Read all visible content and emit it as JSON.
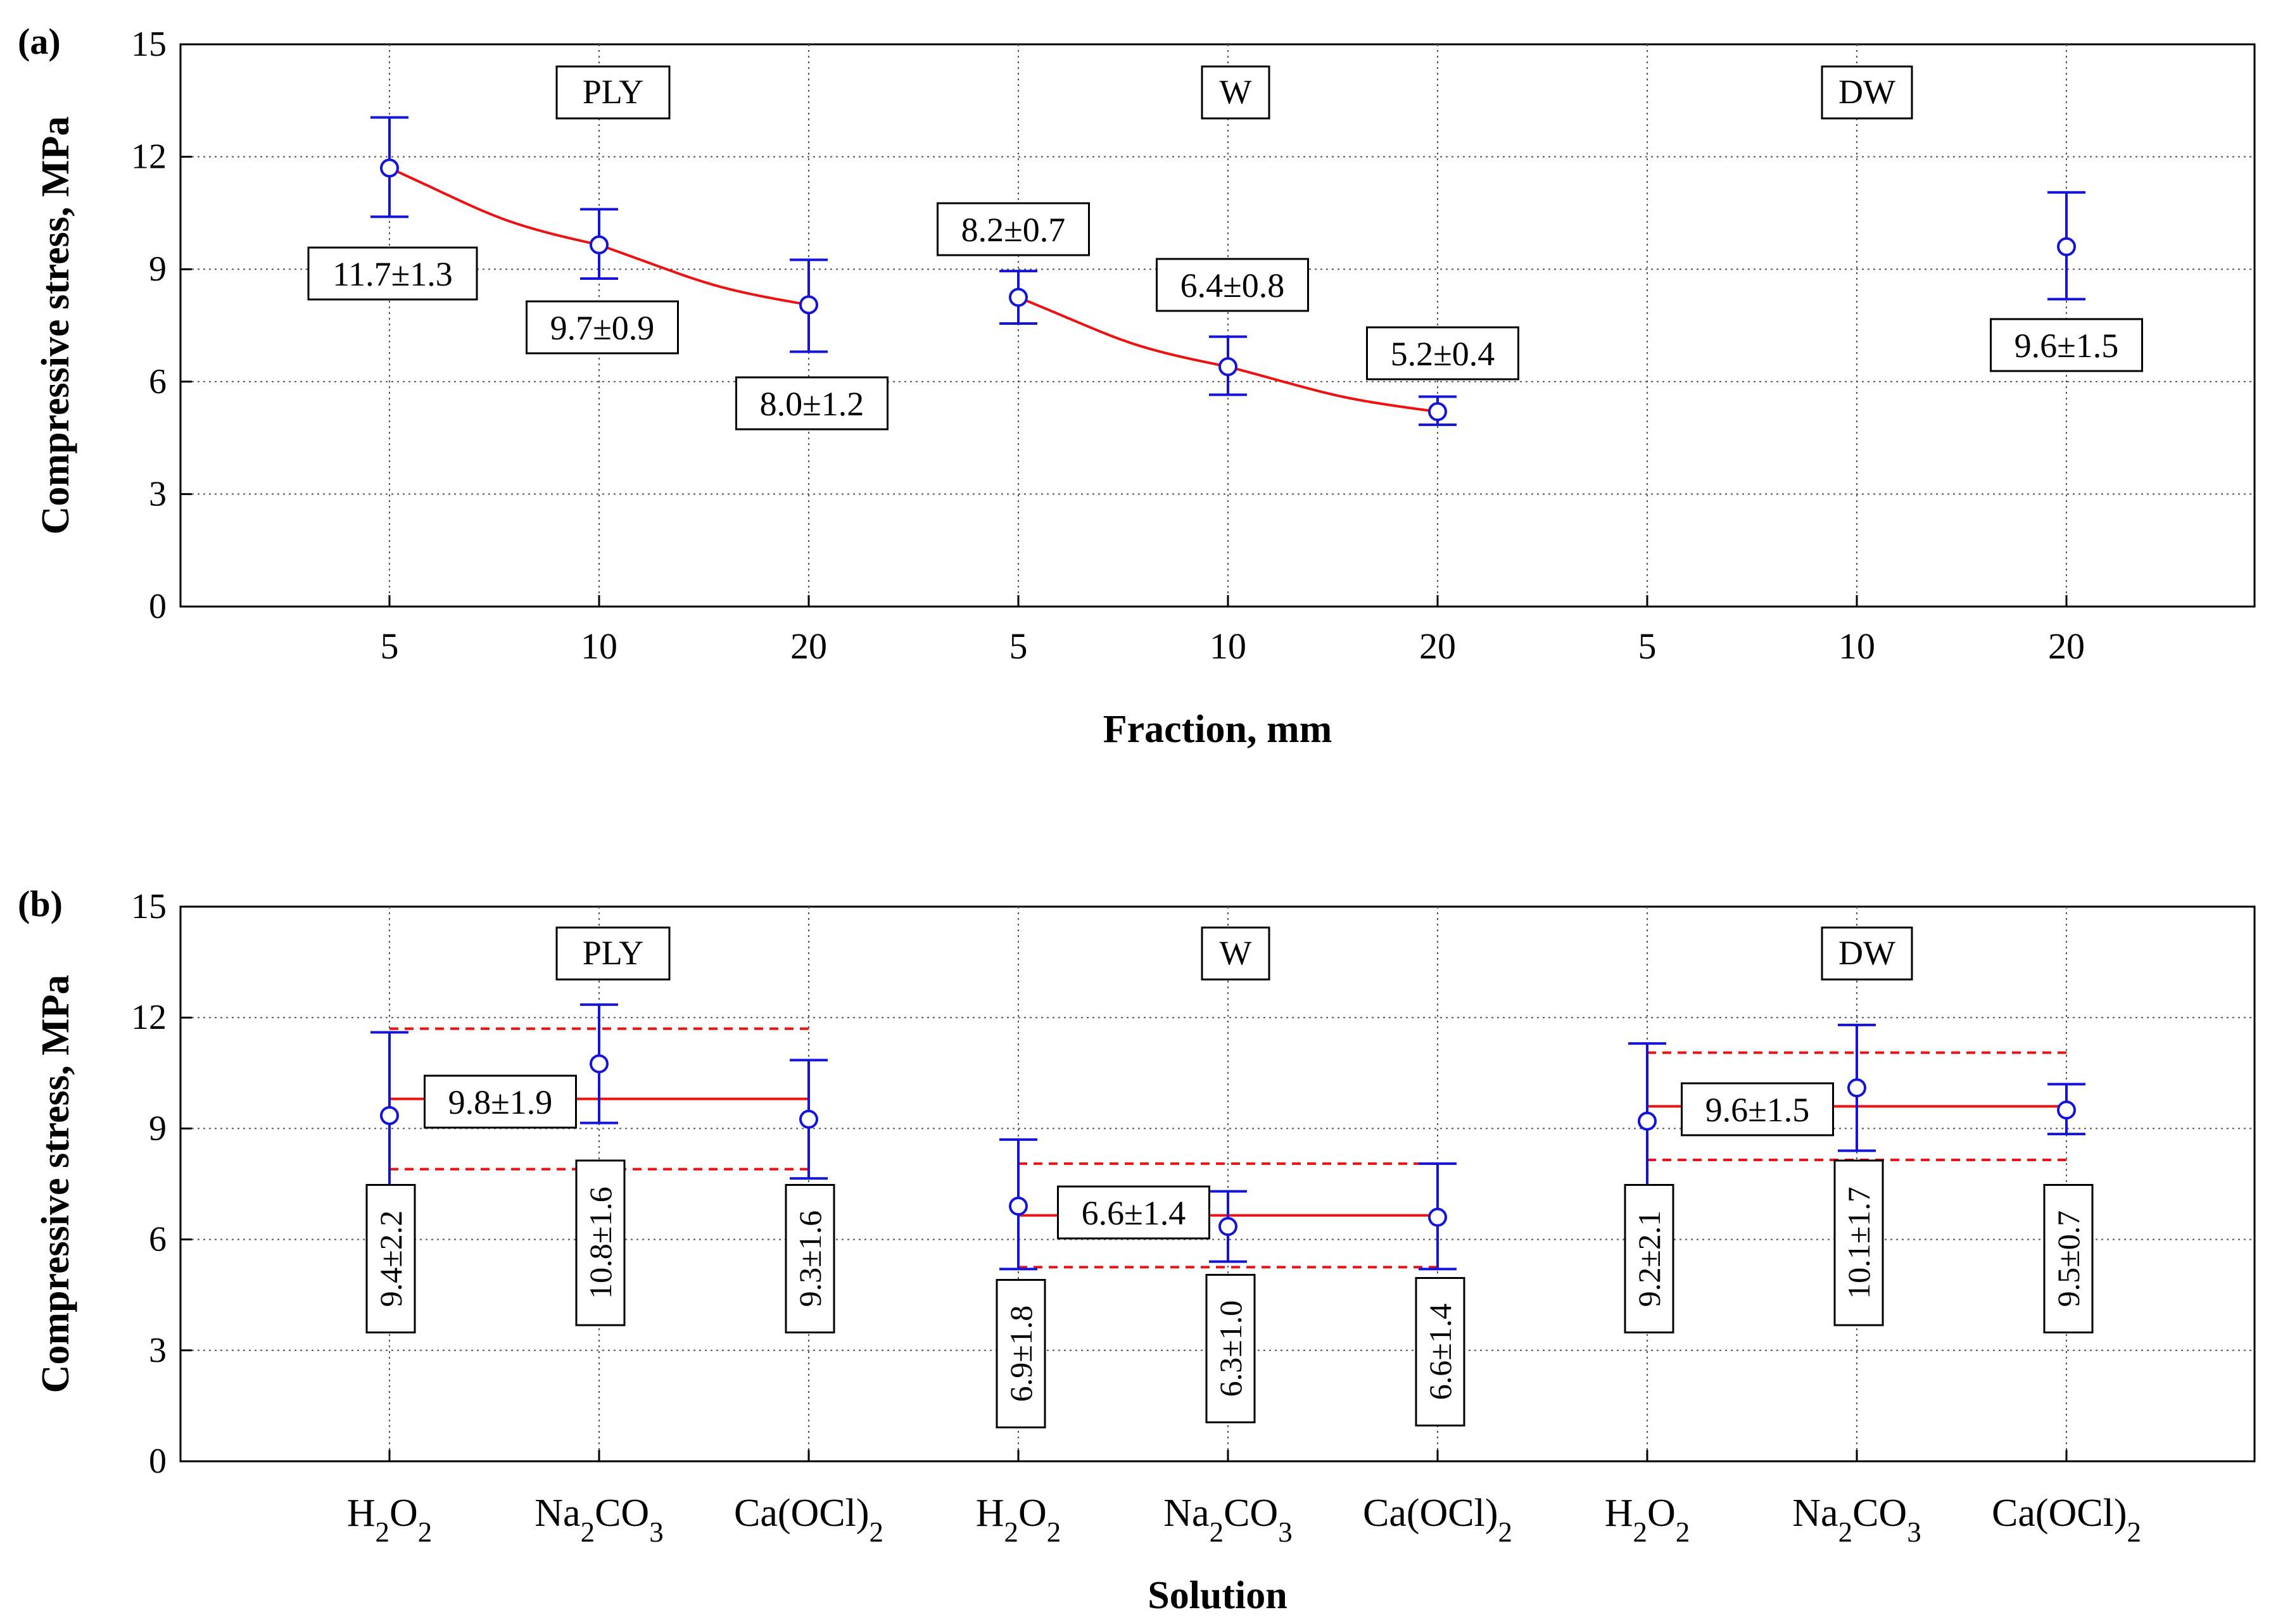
{
  "colors": {
    "marker": "#1414d8",
    "fit": "#ee1111",
    "axis": "#000000",
    "grid": "#555555"
  },
  "chart_data": [
    {
      "panel_label": "(a)",
      "type": "scatter",
      "title": "",
      "xlabel": "Fraction, mm",
      "ylabel": "Compressive stress, MPa",
      "ylim": [
        0,
        15
      ],
      "yticks": [
        "0",
        "3",
        "6",
        "9",
        "12",
        "15"
      ],
      "categories": [
        "5",
        "10",
        "20",
        "5",
        "10",
        "20",
        "5",
        "10",
        "20"
      ],
      "groups": [
        "PLY",
        "W",
        "DW"
      ],
      "series": [
        {
          "name": "PLY",
          "x_index": [
            0,
            1,
            2
          ],
          "values": [
            11.7,
            9.65,
            8.05
          ],
          "err_upper": [
            13.05,
            10.6,
            9.25
          ],
          "err_lower": [
            10.4,
            8.75,
            6.8
          ],
          "labels": [
            "11.7±1.3",
            "9.7±0.9",
            "8.0±1.2"
          ],
          "fit": "curve"
        },
        {
          "name": "W",
          "x_index": [
            3,
            4,
            5
          ],
          "values": [
            8.25,
            6.4,
            5.2
          ],
          "err_upper": [
            8.95,
            7.2,
            5.6
          ],
          "err_lower": [
            7.55,
            5.65,
            4.85
          ],
          "labels": [
            "8.2±0.7",
            "6.4±0.8",
            "5.2±0.4"
          ],
          "fit": "curve"
        },
        {
          "name": "DW",
          "x_index": [
            8
          ],
          "values": [
            9.6
          ],
          "err_upper": [
            11.05
          ],
          "err_lower": [
            8.2
          ],
          "labels": [
            "9.6±1.5"
          ],
          "fit": "none"
        }
      ]
    },
    {
      "panel_label": "(b)",
      "type": "scatter",
      "title": "",
      "xlabel": "Solution",
      "ylabel": "Compressive stress, MPa",
      "ylim": [
        0,
        15
      ],
      "yticks": [
        "0",
        "3",
        "6",
        "9",
        "12",
        "15"
      ],
      "categories": [
        "H2O2",
        "Na2CO3",
        "Ca(OCl)2",
        "H2O2",
        "Na2CO3",
        "Ca(OCl)2",
        "H2O2",
        "Na2CO3",
        "Ca(OCl)2"
      ],
      "groups": [
        "PLY",
        "W",
        "DW"
      ],
      "series": [
        {
          "name": "PLY",
          "x_index": [
            0,
            1,
            2
          ],
          "values": [
            9.35,
            10.75,
            9.25
          ],
          "err_upper": [
            11.6,
            12.35,
            10.85
          ],
          "err_lower": [
            7.1,
            9.15,
            7.65
          ],
          "labels": [
            "9.4±2.2",
            "10.8±1.6",
            "9.3±1.6"
          ],
          "mean": 9.8,
          "mean_upper": 11.7,
          "mean_lower": 7.9,
          "mean_label": "9.8±1.9"
        },
        {
          "name": "W",
          "x_index": [
            3,
            4,
            5
          ],
          "values": [
            6.9,
            6.35,
            6.6
          ],
          "err_upper": [
            8.7,
            7.3,
            8.05
          ],
          "err_lower": [
            5.2,
            5.4,
            5.2
          ],
          "labels": [
            "6.9±1.8",
            "6.3±1.0",
            "6.6±1.4"
          ],
          "mean": 6.65,
          "mean_upper": 8.05,
          "mean_lower": 5.25,
          "mean_label": "6.6±1.4"
        },
        {
          "name": "DW",
          "x_index": [
            6,
            7,
            8
          ],
          "values": [
            9.2,
            10.1,
            9.5
          ],
          "err_upper": [
            11.3,
            11.8,
            10.2
          ],
          "err_lower": [
            7.1,
            8.4,
            8.85
          ],
          "labels": [
            "9.2±2.1",
            "10.1±1.7",
            "9.5±0.7"
          ],
          "mean": 9.6,
          "mean_upper": 11.05,
          "mean_lower": 8.15,
          "mean_label": "9.6±1.5"
        }
      ]
    }
  ]
}
